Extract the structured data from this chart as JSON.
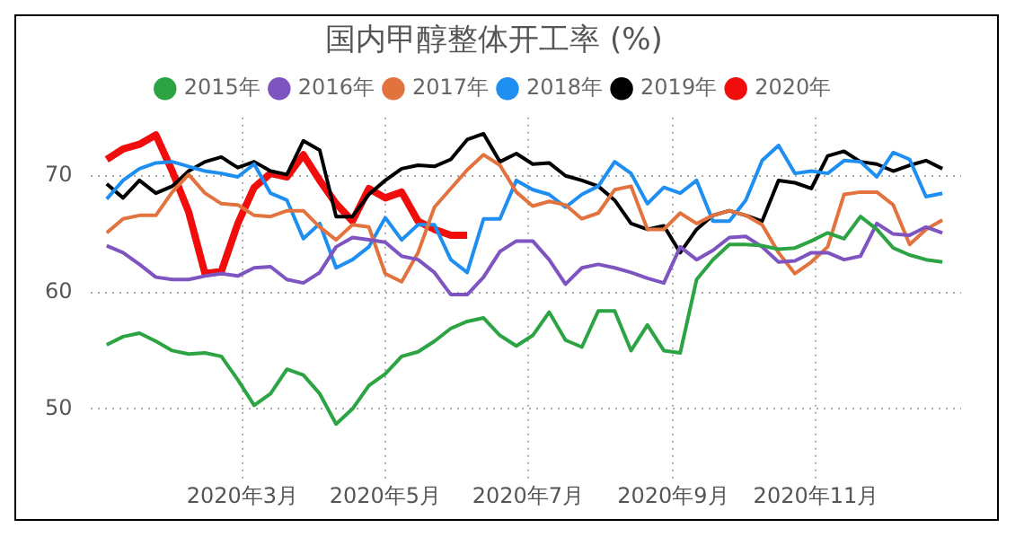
{
  "chart_data": {
    "type": "line",
    "title": "国内甲醇整体开工率 (%)",
    "x": [
      "2020-01-03",
      "2020-01-10",
      "2020-01-17",
      "2020-01-24",
      "2020-01-31",
      "2020-02-07",
      "2020-02-14",
      "2020-02-21",
      "2020-02-28",
      "2020-03-06",
      "2020-03-13",
      "2020-03-20",
      "2020-03-27",
      "2020-04-03",
      "2020-04-10",
      "2020-04-17",
      "2020-04-24",
      "2020-05-01",
      "2020-05-08",
      "2020-05-15",
      "2020-05-22",
      "2020-05-29",
      "2020-06-05",
      "2020-06-12",
      "2020-06-19",
      "2020-06-26",
      "2020-07-03",
      "2020-07-10",
      "2020-07-17",
      "2020-07-24",
      "2020-07-31",
      "2020-08-07",
      "2020-08-14",
      "2020-08-21",
      "2020-08-28",
      "2020-09-04",
      "2020-09-11",
      "2020-09-18",
      "2020-09-25",
      "2020-10-02",
      "2020-10-09",
      "2020-10-16",
      "2020-10-23",
      "2020-10-30",
      "2020-11-06",
      "2020-11-13",
      "2020-11-20",
      "2020-11-27",
      "2020-12-04",
      "2020-12-11",
      "2020-12-18",
      "2020-12-25"
    ],
    "series": [
      {
        "name": "2015年",
        "color": "#2ca444",
        "values": [
          55.5,
          56.2,
          56.5,
          55.8,
          55.0,
          54.7,
          54.8,
          54.5,
          52.5,
          50.3,
          51.3,
          53.4,
          52.9,
          51.3,
          48.7,
          50.0,
          52.0,
          53.0,
          54.5,
          54.9,
          55.8,
          56.9,
          57.5,
          57.8,
          56.3,
          55.4,
          56.3,
          58.3,
          55.9,
          55.3,
          58.4,
          58.4,
          55.0,
          57.2,
          55.0,
          54.8,
          61.1,
          62.8,
          64.1,
          64.1,
          64.0,
          63.7,
          63.8,
          64.4,
          65.1,
          64.6,
          66.5,
          65.4,
          63.8,
          63.2,
          62.8,
          62.6
        ]
      },
      {
        "name": "2016年",
        "color": "#7e55c0",
        "values": [
          64.0,
          63.4,
          62.4,
          61.3,
          61.1,
          61.1,
          61.4,
          61.6,
          61.4,
          62.1,
          62.2,
          61.1,
          60.8,
          61.7,
          63.9,
          64.7,
          64.5,
          64.3,
          63.1,
          62.8,
          61.7,
          59.8,
          59.8,
          61.3,
          63.5,
          64.4,
          64.4,
          62.8,
          60.7,
          62.1,
          62.4,
          62.1,
          61.7,
          61.2,
          60.8,
          63.9,
          62.8,
          63.6,
          64.7,
          64.8,
          63.9,
          62.6,
          62.7,
          63.4,
          63.4,
          62.8,
          63.1,
          65.9,
          65.0,
          64.9,
          65.6,
          65.1
        ]
      },
      {
        "name": "2017年",
        "color": "#e2733e",
        "values": [
          65.1,
          66.3,
          66.6,
          66.6,
          68.6,
          70.1,
          68.5,
          67.6,
          67.5,
          66.6,
          66.5,
          67.0,
          67.0,
          65.6,
          64.5,
          65.8,
          65.6,
          61.6,
          60.9,
          63.4,
          67.3,
          68.9,
          70.5,
          71.8,
          70.9,
          68.6,
          67.4,
          67.8,
          67.5,
          66.3,
          66.8,
          68.8,
          69.1,
          65.4,
          65.4,
          66.8,
          65.9,
          66.6,
          67.0,
          66.6,
          65.8,
          63.4,
          61.6,
          62.6,
          63.9,
          68.4,
          68.6,
          68.6,
          67.5,
          64.1,
          65.4,
          66.2
        ]
      },
      {
        "name": "2018年",
        "color": "#1e8ff0",
        "values": [
          68.0,
          69.6,
          70.6,
          71.1,
          71.2,
          70.8,
          70.4,
          70.2,
          69.9,
          71.0,
          68.5,
          67.9,
          64.6,
          65.9,
          62.1,
          62.8,
          63.9,
          66.4,
          64.5,
          65.8,
          65.8,
          62.8,
          61.7,
          66.3,
          66.3,
          69.6,
          68.8,
          68.4,
          67.3,
          68.4,
          69.1,
          71.2,
          70.2,
          67.6,
          69.0,
          68.5,
          69.6,
          66.1,
          66.1,
          67.9,
          71.3,
          72.6,
          70.2,
          70.4,
          70.2,
          71.3,
          71.2,
          69.9,
          72.0,
          71.4,
          68.2,
          68.5
        ]
      },
      {
        "name": "2019年",
        "color": "#000000",
        "values": [
          69.3,
          68.1,
          69.6,
          68.5,
          69.1,
          70.4,
          71.2,
          71.6,
          70.7,
          71.2,
          70.4,
          70.1,
          73.0,
          72.2,
          66.5,
          66.5,
          68.4,
          69.6,
          70.6,
          70.9,
          70.8,
          71.4,
          73.1,
          73.6,
          71.2,
          71.9,
          71.0,
          71.1,
          70.0,
          69.6,
          69.1,
          67.9,
          65.9,
          65.4,
          65.7,
          63.4,
          65.4,
          66.6,
          67.0,
          66.6,
          66.1,
          69.6,
          69.4,
          68.9,
          71.7,
          72.1,
          71.2,
          71.0,
          70.4,
          70.9,
          71.3,
          70.6
        ]
      },
      {
        "name": "2020年",
        "color": "#f20d0d",
        "x": [
          "2020-01-03",
          "2020-01-10",
          "2020-01-17",
          "2020-01-24",
          "2020-01-31",
          "2020-02-07",
          "2020-02-14",
          "2020-02-21",
          "2020-02-28",
          "2020-03-06",
          "2020-03-13",
          "2020-03-20",
          "2020-03-27",
          "2020-04-03",
          "2020-04-10",
          "2020-04-17",
          "2020-04-24",
          "2020-05-01",
          "2020-05-08",
          "2020-05-15",
          "2020-05-22",
          "2020-05-29",
          "2020-06-05"
        ],
        "values": [
          71.4,
          72.3,
          72.7,
          73.5,
          70.4,
          66.9,
          61.6,
          61.8,
          65.9,
          69.0,
          70.2,
          69.9,
          71.8,
          69.6,
          67.6,
          66.1,
          68.9,
          68.1,
          68.6,
          66.1,
          65.4,
          64.9,
          64.9
        ]
      }
    ],
    "xlim": [
      "2019-12-27",
      "2021-01-02"
    ],
    "xticks": [
      {
        "value": "2020-03-01",
        "label": "2020年3月"
      },
      {
        "value": "2020-05-01",
        "label": "2020年5月"
      },
      {
        "value": "2020-07-01",
        "label": "2020年7月"
      },
      {
        "value": "2020-09-01",
        "label": "2020年9月"
      },
      {
        "value": "2020-11-01",
        "label": "2020年11月"
      }
    ],
    "ylim": [
      44,
      75
    ],
    "yticks": [
      50,
      60,
      70
    ],
    "grid": true,
    "legend": "top",
    "marker": "none",
    "line_style": "solid"
  }
}
